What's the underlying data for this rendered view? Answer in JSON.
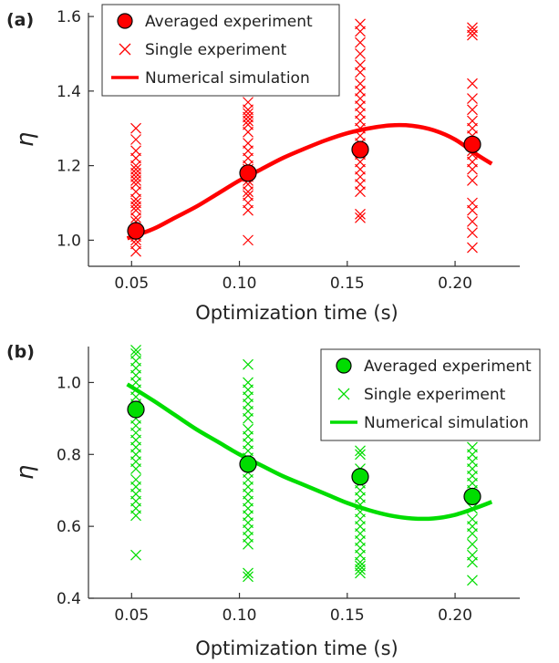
{
  "figure": {
    "panels": [
      {
        "tag": "(a)"
      },
      {
        "tag": "(b)"
      }
    ]
  },
  "chart_data": [
    {
      "type": "scatter",
      "panel": "(a)",
      "xlabel": "Optimization time (s)",
      "ylabel": "η",
      "xlim": [
        0.03,
        0.23
      ],
      "ylim": [
        0.93,
        1.61
      ],
      "xticks": [
        0.05,
        0.1,
        0.15,
        0.2
      ],
      "xtick_labels": [
        "0.05",
        "0.10",
        "0.15",
        "0.20"
      ],
      "yticks": [
        1.0,
        1.2,
        1.4,
        1.6
      ],
      "ytick_labels": [
        "1.0",
        "1.2",
        "1.4",
        "1.6"
      ],
      "grid": false,
      "legend_position": "top-left",
      "color": "#ff0000",
      "series": [
        {
          "name": "Averaged experiment",
          "kind": "markers-circle",
          "x": [
            0.052,
            0.104,
            0.156,
            0.208
          ],
          "y": [
            1.025,
            1.18,
            1.243,
            1.257
          ]
        },
        {
          "name": "Single experiment",
          "kind": "markers-cross",
          "groups": [
            {
              "x": 0.052,
              "y": [
                0.97,
                0.99,
                1.0,
                1.01,
                1.03,
                1.05,
                1.06,
                1.08,
                1.09,
                1.1,
                1.11,
                1.13,
                1.15,
                1.16,
                1.17,
                1.18,
                1.19,
                1.2,
                1.22,
                1.24,
                1.27,
                1.3
              ]
            },
            {
              "x": 0.104,
              "y": [
                1.0,
                1.08,
                1.1,
                1.12,
                1.13,
                1.15,
                1.16,
                1.17,
                1.18,
                1.19,
                1.2,
                1.22,
                1.24,
                1.26,
                1.29,
                1.31,
                1.32,
                1.33,
                1.34,
                1.35,
                1.37,
                1.4
              ]
            },
            {
              "x": 0.156,
              "y": [
                1.06,
                1.07,
                1.13,
                1.15,
                1.17,
                1.19,
                1.21,
                1.23,
                1.24,
                1.26,
                1.28,
                1.3,
                1.32,
                1.34,
                1.36,
                1.38,
                1.4,
                1.42,
                1.45,
                1.47,
                1.5,
                1.53,
                1.56,
                1.58
              ]
            },
            {
              "x": 0.208,
              "y": [
                0.98,
                1.02,
                1.05,
                1.08,
                1.1,
                1.16,
                1.19,
                1.21,
                1.23,
                1.24,
                1.26,
                1.28,
                1.3,
                1.32,
                1.35,
                1.38,
                1.42,
                1.55,
                1.56,
                1.57
              ]
            }
          ]
        },
        {
          "name": "Numerical simulation",
          "kind": "line",
          "x": [
            0.048,
            0.06,
            0.07,
            0.08,
            0.09,
            0.1,
            0.11,
            0.12,
            0.13,
            0.14,
            0.15,
            0.16,
            0.17,
            0.18,
            0.19,
            0.2,
            0.21,
            0.217
          ],
          "y": [
            1.005,
            1.03,
            1.06,
            1.09,
            1.125,
            1.16,
            1.19,
            1.22,
            1.245,
            1.268,
            1.287,
            1.3,
            1.308,
            1.307,
            1.295,
            1.27,
            1.23,
            1.205
          ]
        }
      ]
    },
    {
      "type": "scatter",
      "panel": "(b)",
      "xlabel": "Optimization time (s)",
      "ylabel": "η",
      "xlim": [
        0.03,
        0.23
      ],
      "ylim": [
        0.4,
        1.1
      ],
      "xticks": [
        0.05,
        0.1,
        0.15,
        0.2
      ],
      "xtick_labels": [
        "0.05",
        "0.10",
        "0.15",
        "0.20"
      ],
      "yticks": [
        0.4,
        0.6,
        0.8,
        1.0
      ],
      "ytick_labels": [
        "0.4",
        "0.6",
        "0.8",
        "1.0"
      ],
      "grid": false,
      "legend_position": "top-right",
      "color": "#00dd00",
      "series": [
        {
          "name": "Averaged experiment",
          "kind": "markers-circle",
          "x": [
            0.052,
            0.104,
            0.156,
            0.208
          ],
          "y": [
            0.925,
            0.773,
            0.738,
            0.683
          ]
        },
        {
          "name": "Single experiment",
          "kind": "markers-cross",
          "groups": [
            {
              "x": 0.052,
              "y": [
                0.52,
                0.63,
                0.65,
                0.67,
                0.69,
                0.71,
                0.73,
                0.76,
                0.78,
                0.8,
                0.82,
                0.84,
                0.86,
                0.88,
                0.9,
                0.92,
                0.94,
                0.96,
                0.98,
                1.0,
                1.02,
                1.04,
                1.06,
                1.08,
                1.09
              ]
            },
            {
              "x": 0.104,
              "y": [
                0.46,
                0.47,
                0.55,
                0.57,
                0.59,
                0.61,
                0.63,
                0.65,
                0.67,
                0.69,
                0.71,
                0.73,
                0.75,
                0.77,
                0.79,
                0.81,
                0.83,
                0.85,
                0.87,
                0.9,
                0.92,
                0.94,
                0.96,
                0.98,
                1.0,
                1.05
              ]
            },
            {
              "x": 0.156,
              "y": [
                0.47,
                0.48,
                0.49,
                0.5,
                0.52,
                0.54,
                0.56,
                0.58,
                0.6,
                0.62,
                0.64,
                0.66,
                0.68,
                0.7,
                0.72,
                0.74,
                0.76,
                0.8,
                0.81
              ]
            },
            {
              "x": 0.208,
              "y": [
                0.45,
                0.5,
                0.52,
                0.55,
                0.58,
                0.6,
                0.62,
                0.65,
                0.68,
                0.7,
                0.72,
                0.74,
                0.76,
                0.78,
                0.8,
                0.82
              ]
            }
          ]
        },
        {
          "name": "Numerical simulation",
          "kind": "line",
          "x": [
            0.048,
            0.06,
            0.07,
            0.08,
            0.09,
            0.1,
            0.11,
            0.12,
            0.13,
            0.14,
            0.15,
            0.16,
            0.17,
            0.18,
            0.19,
            0.2,
            0.21,
            0.217
          ],
          "y": [
            0.995,
            0.95,
            0.91,
            0.87,
            0.835,
            0.8,
            0.77,
            0.74,
            0.715,
            0.69,
            0.665,
            0.645,
            0.63,
            0.622,
            0.622,
            0.632,
            0.652,
            0.668
          ]
        }
      ]
    }
  ]
}
